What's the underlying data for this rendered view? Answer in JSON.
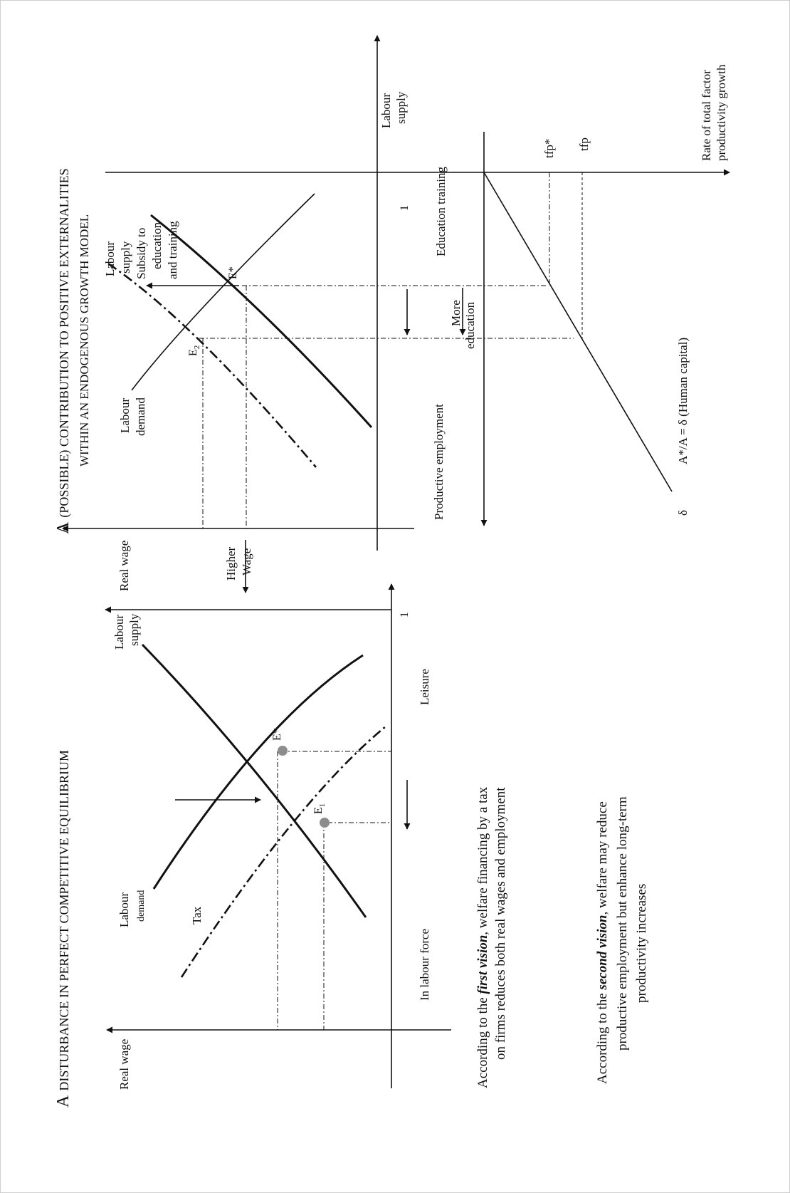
{
  "left_panel": {
    "title_lead": "A",
    "title_rest": "DISTURBANCE IN PERFECT COMPETITIVE EQUILIBRIUM",
    "y_axis": "Real wage",
    "labour_demand_1": "Labour",
    "labour_demand_2": "demand",
    "labour_supply_1": "Labour",
    "labour_supply_2": "supply",
    "tax": "Tax",
    "e_star": "E*",
    "e1_main": "E",
    "e1_sub": "1",
    "in_labour_force": "In labour force",
    "leisure": "Leisure",
    "axis_one": "1",
    "caption1_pre": "According to the ",
    "caption1_em": "first vision",
    "caption1_post": ", welfare financing by a tax",
    "caption1_line2": "on firms reduces both real wages and employment",
    "caption2_pre": "According to the ",
    "caption2_em": "second vision",
    "caption2_post": ", welfare may reduce",
    "caption2_line2": "productive employment but enhance long-term",
    "caption2_line3": "productivity increases"
  },
  "right_panel": {
    "title_lead": "A",
    "title_rest": "(POSSIBLE) CONTRIBUTION TO POSITIVE EXTERNALITIES",
    "subtitle": "WITHIN AN ENDOGENOUS GROWTH MODEL",
    "y_axis": "Real wage",
    "higher_wage_1": "Higher",
    "higher_wage_2": "Wage",
    "labour_demand_1": "Labour",
    "labour_demand_2": "demand",
    "labour_supply_1": "Labour",
    "labour_supply_2": "supply",
    "subsidy_1": "Subsidy to",
    "subsidy_2": "education",
    "subsidy_3": "and training",
    "e_star": "E*",
    "e2_main": "E",
    "e2_sub": "2",
    "productive_employment": "Productive employment",
    "education_training": "Education training",
    "more_education_1": "More",
    "more_education_2": "education",
    "axis_one": "1",
    "labour_supply_axis_1": "Labour",
    "labour_supply_axis_2": "supply",
    "tfp_star": "tfp*",
    "tfp": "tfp",
    "tfp_axis_1": "Rate of total factor",
    "tfp_axis_2": "productivity growth",
    "delta": "δ",
    "human_capital": "A*/A = δ (Human capital)"
  }
}
